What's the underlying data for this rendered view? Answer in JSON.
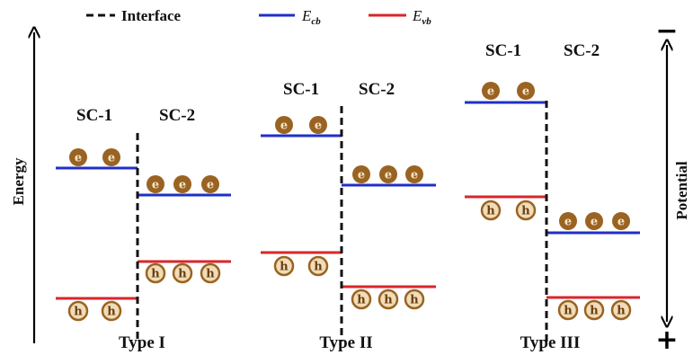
{
  "legend": {
    "interface": "Interface",
    "ecb_main": "E",
    "ecb_sub": "cb",
    "evb_main": "E",
    "evb_sub": "vb"
  },
  "axes": {
    "left": "Energy",
    "right": "Potential",
    "top_sign": "−",
    "bottom_sign": "+"
  },
  "carriers": {
    "electron": "e",
    "hole": "h"
  },
  "colors": {
    "cb": "#1f2fc8",
    "vb": "#d9262b",
    "interface": "#111111",
    "carrier_fill": "#9a6322",
    "electron_text": "#f4e4c8",
    "hole_fill": "#f0dcb8",
    "hole_text": "#6a3e10"
  },
  "panels": [
    {
      "type": "Type I",
      "left_label": "SC-1",
      "right_label": "SC-2"
    },
    {
      "type": "Type II",
      "left_label": "SC-1",
      "right_label": "SC-2"
    },
    {
      "type": "Type III",
      "left_label": "SC-1",
      "right_label": "SC-2"
    }
  ]
}
